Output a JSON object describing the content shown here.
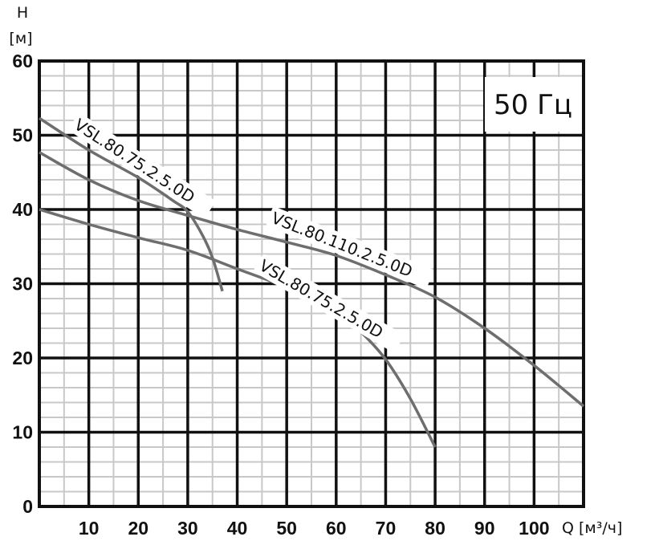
{
  "chart_data": {
    "type": "line",
    "title": "50 Гц",
    "xlabel": "Q [м³/ч]",
    "ylabel_top": "H",
    "ylabel_unit": "[м]",
    "xlim": [
      0,
      110
    ],
    "ylim": [
      0,
      60
    ],
    "xticks": [
      "10",
      "20",
      "30",
      "40",
      "50",
      "60",
      "70",
      "80",
      "90",
      "100"
    ],
    "yticks": [
      "0",
      "10",
      "20",
      "30",
      "40",
      "50",
      "60"
    ],
    "grid": true,
    "colors": {
      "curve": "#6e6e6e",
      "major_grid": "#111111",
      "minor_grid": "#c8c8c8"
    },
    "series": [
      {
        "name": "VSL.80.75.2.5.0D",
        "points": [
          [
            0,
            52.3
          ],
          [
            10,
            48
          ],
          [
            20,
            44.3
          ],
          [
            27,
            41.2
          ],
          [
            30,
            39.7
          ],
          [
            33,
            36.5
          ],
          [
            35,
            33.5
          ],
          [
            37,
            29
          ]
        ]
      },
      {
        "name": "VSL.80.110.2.5.0D",
        "points": [
          [
            0,
            47.7
          ],
          [
            10,
            44
          ],
          [
            20,
            41.2
          ],
          [
            30,
            39.2
          ],
          [
            40,
            37.3
          ],
          [
            50,
            35.6
          ],
          [
            60,
            33.8
          ],
          [
            70,
            31.2
          ],
          [
            80,
            28.2
          ],
          [
            90,
            24
          ],
          [
            100,
            19
          ],
          [
            110,
            13.5
          ]
        ]
      },
      {
        "name": "VSL.80.75.2.5.0D",
        "points": [
          [
            0,
            40
          ],
          [
            10,
            38
          ],
          [
            20,
            36.2
          ],
          [
            30,
            34.5
          ],
          [
            40,
            32
          ],
          [
            50,
            29.5
          ],
          [
            60,
            26.3
          ],
          [
            65,
            23.5
          ],
          [
            70,
            19.8
          ],
          [
            75,
            14.5
          ],
          [
            80,
            8
          ]
        ]
      }
    ]
  }
}
